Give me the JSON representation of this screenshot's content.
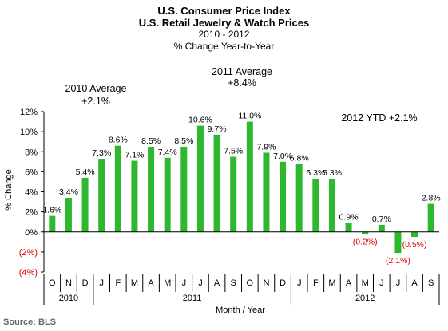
{
  "chart_data": {
    "type": "bar",
    "title": "U.S. Consumer Price Index",
    "subtitle": "U.S. Retail Jewelry & Watch Prices",
    "period": "2010 - 2012",
    "measure": "% Change Year-to-Year",
    "xlabel": "Month / Year",
    "ylabel": "% Change",
    "ylim": [
      -4,
      12
    ],
    "yticks": [
      12,
      10,
      8,
      6,
      4,
      2,
      0,
      -2,
      -4
    ],
    "ytick_labels": [
      "12%",
      "10%",
      "8%",
      "6%",
      "4%",
      "2%",
      "0%",
      "(2%)",
      "(4%)"
    ],
    "categories": [
      "O",
      "N",
      "D",
      "J",
      "F",
      "M",
      "A",
      "M",
      "J",
      "J",
      "A",
      "S",
      "O",
      "N",
      "D",
      "J",
      "F",
      "M",
      "A",
      "M",
      "J",
      "J",
      "A",
      "S"
    ],
    "values": [
      1.6,
      3.4,
      5.4,
      7.3,
      8.6,
      7.1,
      8.5,
      7.4,
      8.5,
      10.6,
      9.7,
      7.5,
      11.0,
      7.9,
      7.0,
      6.8,
      5.3,
      5.3,
      0.9,
      -0.2,
      0.7,
      -2.1,
      -0.5,
      2.8
    ],
    "value_labels": [
      "1.6%",
      "3.4%",
      "5.4%",
      "7.3%",
      "8.6%",
      "7.1%",
      "8.5%",
      "7.4%",
      "8.5%",
      "10.6%",
      "9.7%",
      "7.5%",
      "11.0%",
      "7.9%",
      "7.0%",
      "6.8%",
      "5.3%",
      "5.3%",
      "0.9%",
      "(0.2%)",
      "0.7%",
      "(2.1%)",
      "(0.5%)",
      "2.8%"
    ],
    "years": [
      {
        "label": "2010",
        "start": 0,
        "end": 2
      },
      {
        "label": "2011",
        "start": 3,
        "end": 14
      },
      {
        "label": "2012",
        "start": 15,
        "end": 23
      }
    ],
    "annotations": [
      {
        "line1": "2010 Average",
        "line2": "+2.1%"
      },
      {
        "line1": "2011 Average",
        "line2": "+8.4%"
      },
      {
        "line1": "2012 YTD  +2.1%",
        "line2": ""
      }
    ],
    "grid": false,
    "colors": {
      "bar": "#2eb82e",
      "negative_label": "#e00000",
      "axis": "#000000"
    }
  },
  "source": "Source:  BLS"
}
